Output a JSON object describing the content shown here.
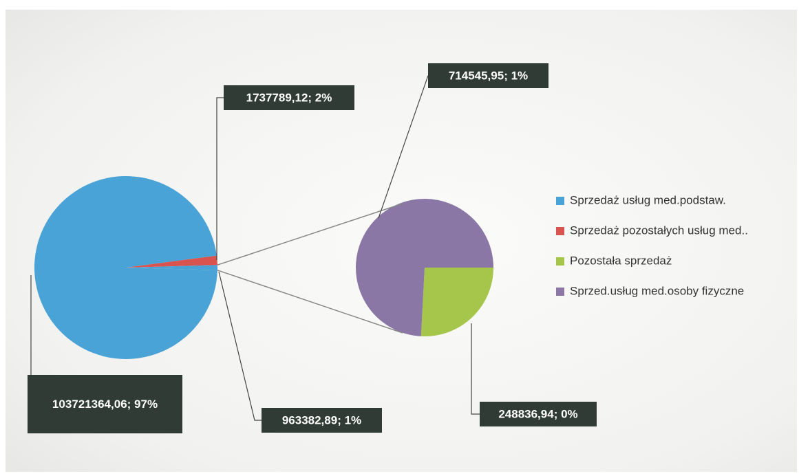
{
  "chart_data": {
    "type": "pie-of-pie",
    "categories": [
      "Sprzedaż usług med.podstaw.",
      "Sprzedaż pozostałych usług med..",
      "Pozostała sprzedaż",
      "Sprzed.usług med.osoby fizyczne"
    ],
    "values": [
      103721364.06,
      1737789.12,
      248836.94,
      714545.95
    ],
    "value_labels": [
      "103721364,06; 97%",
      "1737789,12; 2%",
      "248836,94; 0%",
      "714545,95; 1%"
    ],
    "colors": [
      "#4aa3d6",
      "#d9534f",
      "#a5c64a",
      "#8a77a6"
    ],
    "other_value": 963382.89,
    "other_value_label": "963382,89; 1%",
    "other_color": "#4aa3d6",
    "legend": "right"
  }
}
